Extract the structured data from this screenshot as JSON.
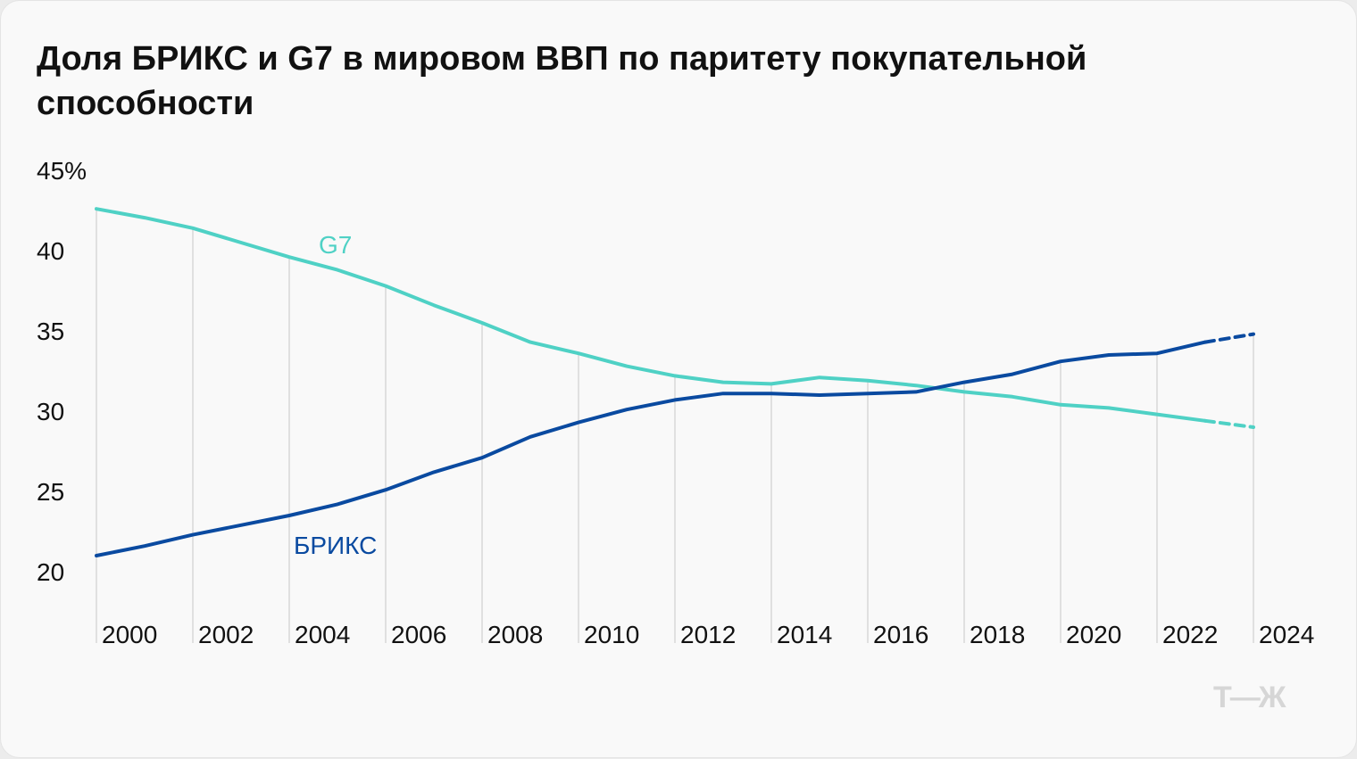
{
  "chart_data": {
    "type": "line",
    "title": "Доля БРИКС и G7 в мировом ВВП по паритету покупательной способности",
    "xlabel": "",
    "ylabel": "",
    "ylim": [
      20,
      45
    ],
    "xlim": [
      2000,
      2024
    ],
    "yticks": [
      "45%",
      "40",
      "35",
      "30",
      "25",
      "20"
    ],
    "ytick_values": [
      45,
      40,
      35,
      30,
      25,
      20
    ],
    "xticks": [
      2000,
      2002,
      2004,
      2006,
      2008,
      2010,
      2012,
      2014,
      2016,
      2018,
      2020,
      2022,
      2024
    ],
    "grid": "vertical",
    "x": [
      2000,
      2001,
      2002,
      2003,
      2004,
      2005,
      2006,
      2007,
      2008,
      2009,
      2010,
      2011,
      2012,
      2013,
      2014,
      2015,
      2016,
      2017,
      2018,
      2019,
      2020,
      2021,
      2022,
      2023,
      2024
    ],
    "forecast_from": 2023,
    "series": [
      {
        "name": "G7",
        "color": "#4fd1c5",
        "values": [
          42.6,
          42.05,
          41.4,
          40.5,
          39.6,
          38.8,
          37.8,
          36.6,
          35.5,
          34.3,
          33.6,
          32.8,
          32.2,
          31.8,
          31.7,
          32.1,
          31.9,
          31.6,
          31.2,
          30.9,
          30.4,
          30.2,
          29.8,
          29.4,
          29.0
        ]
      },
      {
        "name": "БРИКС",
        "color": "#0a4aa0",
        "values": [
          21.0,
          21.6,
          22.3,
          22.9,
          23.5,
          24.2,
          25.1,
          26.2,
          27.1,
          28.4,
          29.3,
          30.1,
          30.7,
          31.1,
          31.1,
          31.0,
          31.1,
          31.2,
          31.8,
          32.3,
          33.1,
          33.5,
          33.6,
          34.3,
          34.8
        ]
      }
    ]
  },
  "logo": "Т—Ж"
}
